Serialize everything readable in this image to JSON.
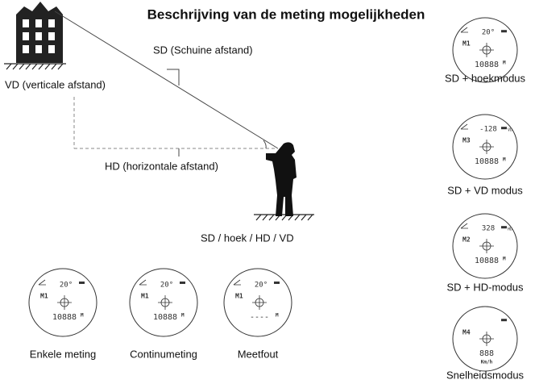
{
  "title": "Beschrijving van de meting mogelijkheden",
  "scene": {
    "slope": "SD (Schuine afstand)",
    "vertical": "VD (verticale afstand)",
    "horizontal": "HD (horizontale afstand)",
    "observer": "SD / hoek / HD / VD"
  },
  "side_displays": [
    {
      "caption": "SD + hoekmodus",
      "angle": "20°",
      "mode": "M1",
      "reading": "10888",
      "unit": "M"
    },
    {
      "caption": "SD + VD modus",
      "angle": "-128",
      "tag": "VD",
      "mode": "M3",
      "reading": "10888",
      "unit": "M"
    },
    {
      "caption": "SD + HD-modus",
      "angle": "328",
      "tag": "HD",
      "mode": "M2",
      "reading": "10888",
      "unit": "M"
    },
    {
      "caption": "Snelheidsmodus",
      "mode": "M4",
      "reading": "888",
      "unit": "Km/h"
    }
  ],
  "bottom_displays": [
    {
      "caption": "Enkele meting",
      "angle": "20°",
      "mode": "M1",
      "reading": "10888",
      "unit": "M"
    },
    {
      "caption": "Continumeting",
      "angle": "20°",
      "mode": "M1",
      "reading": "10888",
      "unit": "M"
    },
    {
      "caption": "Meetfout",
      "angle": "20°",
      "mode": "M1",
      "reading": "----",
      "unit": "M"
    }
  ]
}
